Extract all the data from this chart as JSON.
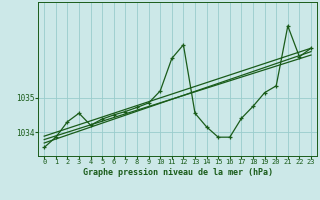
{
  "title": "Graphe pression niveau de la mer (hPa)",
  "bg_color": "#cce8e8",
  "grid_color": "#99cccc",
  "line_color": "#1a5c1a",
  "xlim": [
    -0.5,
    23.5
  ],
  "ylim": [
    1033.3,
    1037.8
  ],
  "yticks": [
    1034,
    1035
  ],
  "xticks": [
    0,
    1,
    2,
    3,
    4,
    5,
    6,
    7,
    8,
    9,
    10,
    11,
    12,
    13,
    14,
    15,
    16,
    17,
    18,
    19,
    20,
    21,
    22,
    23
  ],
  "main_x": [
    0,
    1,
    2,
    3,
    4,
    5,
    6,
    7,
    8,
    9,
    10,
    11,
    12,
    13,
    14,
    15,
    16,
    17,
    18,
    19,
    20,
    21,
    22,
    23
  ],
  "main_y": [
    1033.55,
    1033.85,
    1034.3,
    1034.55,
    1034.2,
    1034.38,
    1034.5,
    1034.6,
    1034.72,
    1034.85,
    1035.2,
    1036.15,
    1036.55,
    1034.55,
    1034.15,
    1033.85,
    1033.85,
    1034.4,
    1034.75,
    1035.15,
    1035.35,
    1037.1,
    1036.2,
    1036.45
  ],
  "line2_x": [
    0,
    23
  ],
  "line2_y": [
    1033.68,
    1036.35
  ],
  "line3_x": [
    0,
    23
  ],
  "line3_y": [
    1033.78,
    1036.25
  ],
  "line4_x": [
    0,
    23
  ],
  "line4_y": [
    1033.88,
    1036.45
  ]
}
